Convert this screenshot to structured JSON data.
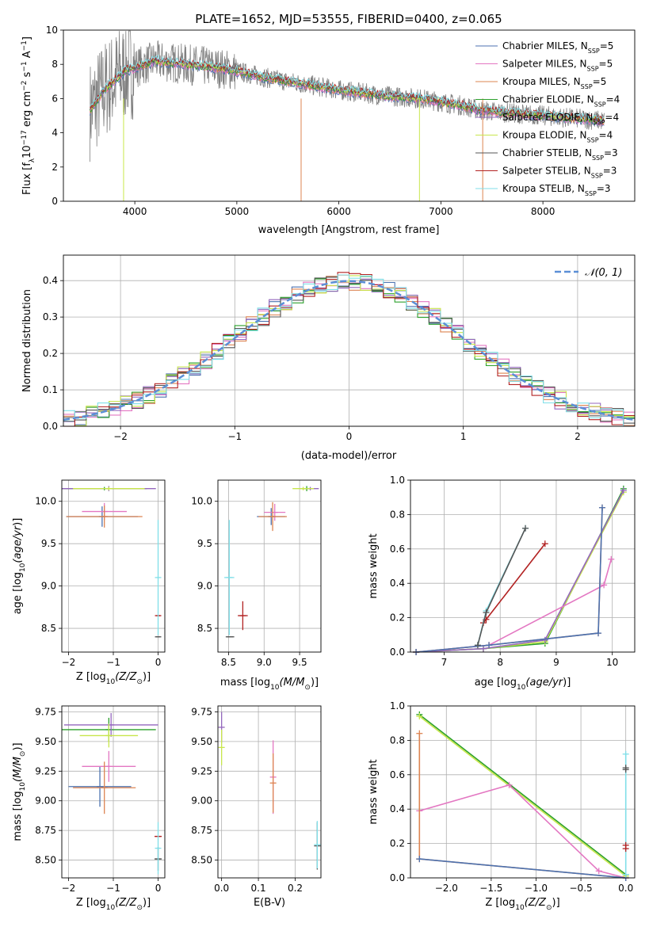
{
  "figure": {
    "suptitle": "PLATE=1652, MJD=53555, FIBERID=0400, z=0.065"
  },
  "legend_entries": [
    {
      "name": "Chabrier MILES, N",
      "sub": "SSP",
      "suffix": "=5",
      "color": "#4c72b0"
    },
    {
      "name": "Salpeter MILES, N",
      "sub": "SSP",
      "suffix": "=5",
      "color": "#e377c2"
    },
    {
      "name": "Kroupa MILES, N",
      "sub": "SSP",
      "suffix": "=5",
      "color": "#dd8452"
    },
    {
      "name": "Chabrier ELODIE, N",
      "sub": "SSP",
      "suffix": "=4",
      "color": "#2ca02c"
    },
    {
      "name": "Salpeter ELODIE, N",
      "sub": "SSP",
      "suffix": "=4",
      "color": "#9467bd"
    },
    {
      "name": "Kroupa ELODIE, N",
      "sub": "SSP",
      "suffix": "=4",
      "color": "#c8e64c"
    },
    {
      "name": "Chabrier STELIB, N",
      "sub": "SSP",
      "suffix": "=3",
      "color": "#555555"
    },
    {
      "name": "Salpeter STELIB, N",
      "sub": "SSP",
      "suffix": "=3",
      "color": "#b22222"
    },
    {
      "name": "Kroupa STELIB, N",
      "sub": "SSP",
      "suffix": "=3",
      "color": "#80dfe8"
    }
  ],
  "chart_data": [
    {
      "id": "spectrum",
      "type": "line",
      "title": "PLATE=1652, MJD=53555, FIBERID=0400, z=0.065",
      "xlabel": "wavelength [Angstrom, rest frame]",
      "ylabel_main": "Flux [f",
      "ylabel_sub": "λ",
      "ylabel_rest": "10",
      "ylabel_exp": "−17",
      "ylabel_unit": " erg cm",
      "ylabel_exp2": "−2",
      "ylabel_s": " s",
      "ylabel_exp3": "−1",
      "ylabel_end": " A",
      "ylabel_exp4": "−1",
      "ylabel_close": "]",
      "xlim": [
        3300,
        8900
      ],
      "ylim": [
        0,
        10
      ],
      "xticks": [
        "4000",
        "5000",
        "6000",
        "7000",
        "8000"
      ],
      "yticks": [
        "0",
        "2",
        "4",
        "6",
        "8",
        "10"
      ],
      "grid": false,
      "legend": "upper-right",
      "data_anchor": {
        "x": [
          3560,
          3700,
          3900,
          4200,
          4500,
          4800,
          5000,
          5300,
          5600,
          6000,
          6400,
          6800,
          7200,
          7400,
          7600,
          8000,
          8400,
          8600
        ],
        "y": [
          5.3,
          6.5,
          7.6,
          8.2,
          8.0,
          7.8,
          7.6,
          7.2,
          6.9,
          6.5,
          6.2,
          6.0,
          5.6,
          5.3,
          5.2,
          5.0,
          4.8,
          4.7
        ]
      }
    },
    {
      "id": "residuals",
      "type": "line",
      "xlabel": "(data-model)/error",
      "ylabel": "Normed distribution",
      "xlim": [
        -2.5,
        2.5
      ],
      "ylim": [
        0,
        0.47
      ],
      "xticks": [
        "−2",
        "−1",
        "0",
        "1",
        "2"
      ],
      "yticks": [
        "0.0",
        "0.1",
        "0.2",
        "0.3",
        "0.4"
      ],
      "grid": true,
      "legend": "upper-right",
      "legend_label": "𝒩(0, 1)",
      "gauss": {
        "mean": 0,
        "sigma": 1
      }
    },
    {
      "id": "age_vs_Z",
      "type": "scatter",
      "xlabel": "Z [log",
      "ylabel": "age  [log",
      "xlim": [
        -2.15,
        0.15
      ],
      "ylim": [
        8.22,
        10.25
      ],
      "xticks": [
        "−2",
        "−1",
        "0"
      ],
      "yticks": [
        "8.5",
        "9.0",
        "9.5",
        "10.0"
      ],
      "grid": true,
      "errorbars": [
        {
          "x": -1.25,
          "y": 9.82,
          "xerr": 0.8,
          "yerr": 0.12,
          "c": "#4c72b0"
        },
        {
          "x": -1.2,
          "y": 9.88,
          "xerr": 0.5,
          "yerr": 0.1,
          "c": "#e377c2"
        },
        {
          "x": -1.2,
          "y": 9.82,
          "xerr": 0.85,
          "yerr": 0.13,
          "c": "#dd8452"
        },
        {
          "x": -1.2,
          "y": 10.15,
          "xerr": 0.95,
          "yerr": 0.02,
          "c": "#2ca02c"
        },
        {
          "x": -1.1,
          "y": 10.15,
          "xerr": 1.05,
          "yerr": 0.03,
          "c": "#9467bd"
        },
        {
          "x": -1.1,
          "y": 10.15,
          "xerr": 0.8,
          "yerr": 0.02,
          "c": "#c8e64c"
        },
        {
          "x": 0.0,
          "y": 8.4,
          "xerr": 0.05,
          "yerr": 0.0,
          "c": "#555555"
        },
        {
          "x": 0.0,
          "y": 8.65,
          "xerr": 0.05,
          "yerr": 0.0,
          "c": "#b22222"
        },
        {
          "x": 0.0,
          "y": 9.1,
          "xerr": 0.0,
          "yerr": 0.68,
          "c": "#80dfe8"
        }
      ]
    },
    {
      "id": "age_vs_mass",
      "type": "scatter",
      "xlabel": "mass [log",
      "ylabel": "",
      "xlim": [
        8.35,
        9.8
      ],
      "ylim": [
        8.22,
        10.25
      ],
      "xticks": [
        "8.5",
        "9.0",
        "9.5"
      ],
      "yticks": [
        "8.5",
        "9.0",
        "9.5",
        "10.0"
      ],
      "grid": true,
      "errorbars": [
        {
          "x": 9.1,
          "y": 9.82,
          "xerr": 0.2,
          "yerr": 0.1,
          "c": "#4c72b0"
        },
        {
          "x": 9.15,
          "y": 9.87,
          "xerr": 0.15,
          "yerr": 0.1,
          "c": "#e377c2"
        },
        {
          "x": 9.12,
          "y": 9.82,
          "xerr": 0.2,
          "yerr": 0.17,
          "c": "#dd8452"
        },
        {
          "x": 9.6,
          "y": 10.15,
          "xerr": 0.05,
          "yerr": 0.03,
          "c": "#2ca02c"
        },
        {
          "x": 9.65,
          "y": 10.15,
          "xerr": 0.12,
          "yerr": 0.02,
          "c": "#9467bd"
        },
        {
          "x": 9.55,
          "y": 10.15,
          "xerr": 0.15,
          "yerr": 0.02,
          "c": "#c8e64c"
        },
        {
          "x": 8.52,
          "y": 8.4,
          "xerr": 0.06,
          "yerr": 0.0,
          "c": "#555555"
        },
        {
          "x": 8.7,
          "y": 8.65,
          "xerr": 0.07,
          "yerr": 0.17,
          "c": "#b22222"
        },
        {
          "x": 8.51,
          "y": 9.1,
          "xerr": 0.07,
          "yerr": 0.68,
          "c": "#80dfe8"
        }
      ]
    },
    {
      "id": "massweight_vs_age",
      "type": "line",
      "xlabel": "age  [log",
      "ylabel": "mass weight",
      "xlim": [
        6.4,
        10.4
      ],
      "ylim": [
        0,
        1.0
      ],
      "xticks": [
        "7",
        "8",
        "9",
        "10"
      ],
      "yticks": [
        "0.0",
        "0.2",
        "0.4",
        "0.6",
        "0.8",
        "1.0"
      ],
      "grid": true,
      "series": [
        {
          "c": "#2ca02c",
          "x": [
            6.5,
            7.7,
            8.8,
            10.2
          ],
          "y": [
            0.0,
            0.02,
            0.05,
            0.95
          ]
        },
        {
          "c": "#c8e64c",
          "x": [
            6.5,
            7.7,
            8.8,
            10.2
          ],
          "y": [
            0.0,
            0.02,
            0.06,
            0.93
          ]
        },
        {
          "c": "#9467bd",
          "x": [
            6.5,
            7.7,
            8.8,
            10.2
          ],
          "y": [
            0.0,
            0.02,
            0.07,
            0.94
          ]
        },
        {
          "c": "#e377c2",
          "x": [
            6.5,
            7.8,
            9.85,
            9.98
          ],
          "y": [
            0.0,
            0.04,
            0.39,
            0.54
          ]
        },
        {
          "c": "#dd8452",
          "x": [
            6.5,
            7.8,
            9.75,
            9.82
          ],
          "y": [
            0.0,
            0.04,
            0.11,
            0.84
          ]
        },
        {
          "c": "#4c72b0",
          "x": [
            6.5,
            7.8,
            9.75,
            9.82
          ],
          "y": [
            0.0,
            0.04,
            0.11,
            0.84
          ]
        },
        {
          "c": "#b22222",
          "x": [
            7.7,
            7.75,
            8.8
          ],
          "y": [
            0.17,
            0.19,
            0.63
          ]
        },
        {
          "c": "#80dfe8",
          "x": [
            7.6,
            7.75,
            8.45
          ],
          "y": [
            0.04,
            0.24,
            0.72
          ]
        },
        {
          "c": "#555555",
          "x": [
            7.6,
            7.75,
            8.45
          ],
          "y": [
            0.04,
            0.23,
            0.72
          ]
        }
      ]
    },
    {
      "id": "mass_vs_Z",
      "type": "scatter",
      "xlabel": "Z [log",
      "ylabel": "mass [log",
      "xlim": [
        -2.15,
        0.15
      ],
      "ylim": [
        8.35,
        9.8
      ],
      "xticks": [
        "−2",
        "−1",
        "0"
      ],
      "yticks": [
        "8.50",
        "8.75",
        "9.00",
        "9.25",
        "9.50",
        "9.75"
      ],
      "grid": true,
      "errorbars": [
        {
          "x": -1.3,
          "y": 9.12,
          "xerr": 0.7,
          "yerr": 0.17,
          "c": "#4c72b0"
        },
        {
          "x": -1.1,
          "y": 9.29,
          "xerr": 0.6,
          "yerr": 0.13,
          "c": "#e377c2"
        },
        {
          "x": -1.2,
          "y": 9.11,
          "xerr": 0.7,
          "yerr": 0.22,
          "c": "#dd8452"
        },
        {
          "x": -1.1,
          "y": 9.6,
          "xerr": 1.05,
          "yerr": 0.1,
          "c": "#2ca02c"
        },
        {
          "x": -1.05,
          "y": 9.64,
          "xerr": 1.05,
          "yerr": 0.1,
          "c": "#9467bd"
        },
        {
          "x": -1.1,
          "y": 9.55,
          "xerr": 0.65,
          "yerr": 0.1,
          "c": "#c8e64c"
        },
        {
          "x": 0.0,
          "y": 8.51,
          "xerr": 0.08,
          "yerr": 0.1,
          "c": "#555555"
        },
        {
          "x": 0.0,
          "y": 8.7,
          "xerr": 0.08,
          "yerr": 0.0,
          "c": "#b22222"
        },
        {
          "x": 0.0,
          "y": 8.6,
          "xerr": 0.0,
          "yerr": 0.22,
          "c": "#80dfe8"
        }
      ]
    },
    {
      "id": "mass_vs_EBV",
      "type": "scatter",
      "xlabel": "E(B-V)",
      "ylabel": "",
      "xlim": [
        -0.01,
        0.27
      ],
      "ylim": [
        8.35,
        9.8
      ],
      "xticks": [
        "0.0",
        "0.1",
        "0.2"
      ],
      "yticks": [
        "8.50",
        "8.75",
        "9.00",
        "9.25",
        "9.50",
        "9.75"
      ],
      "grid": true,
      "errorbars": [
        {
          "x": 0.0,
          "y": 9.62,
          "xerr": 0.0,
          "yerr": 0.13,
          "c": "#9467bd"
        },
        {
          "x": 0.0,
          "y": 9.45,
          "xerr": 0.0,
          "yerr": 0.15,
          "c": "#c8e64c"
        },
        {
          "x": 0.14,
          "y": 9.2,
          "xerr": 0.0,
          "yerr": 0.31,
          "c": "#e377c2"
        },
        {
          "x": 0.14,
          "y": 9.15,
          "xerr": 0.0,
          "yerr": 0.25,
          "c": "#dd8452"
        },
        {
          "x": 0.26,
          "y": 8.62,
          "xerr": 0.0,
          "yerr": 0.2,
          "c": "#555555"
        },
        {
          "x": 0.26,
          "y": 8.63,
          "xerr": 0.0,
          "yerr": 0.2,
          "c": "#80dfe8"
        }
      ]
    },
    {
      "id": "massweight_vs_Z",
      "type": "line",
      "xlabel": "Z [log",
      "ylabel": "mass weight",
      "xlim": [
        -2.4,
        0.1
      ],
      "ylim": [
        0,
        1.0
      ],
      "xticks": [
        "−2.0",
        "−1.5",
        "−1.0",
        "−0.5",
        "0.0"
      ],
      "yticks": [
        "0.0",
        "0.2",
        "0.4",
        "0.6",
        "0.8",
        "1.0"
      ],
      "grid": true,
      "series": [
        {
          "c": "#2ca02c",
          "x": [
            -2.3,
            0.0
          ],
          "y": [
            0.95,
            0.02
          ]
        },
        {
          "c": "#c8e64c",
          "x": [
            -2.3,
            0.0
          ],
          "y": [
            0.94,
            0.01
          ]
        },
        {
          "c": "#e377c2",
          "x": [
            -2.3,
            -1.3,
            -0.3,
            0.0
          ],
          "y": [
            0.39,
            0.54,
            0.04,
            0.0
          ]
        },
        {
          "c": "#dd8452",
          "x": [
            -2.3,
            -2.3,
            -2.3,
            0.0
          ],
          "y": [
            0.84,
            0.11,
            0.11,
            0.0
          ]
        },
        {
          "c": "#4c72b0",
          "x": [
            -2.3,
            0.0
          ],
          "y": [
            0.11,
            0.0
          ]
        },
        {
          "c": "#80dfe8",
          "x": [
            0.0,
            0.0
          ],
          "y": [
            0.02,
            0.72
          ]
        },
        {
          "c": "#b22222",
          "x": [
            0.0,
            0.0
          ],
          "y": [
            0.17,
            0.19
          ]
        },
        {
          "c": "#555555",
          "x": [
            0.0,
            0.0
          ],
          "y": [
            0.63,
            0.64
          ]
        }
      ]
    }
  ]
}
